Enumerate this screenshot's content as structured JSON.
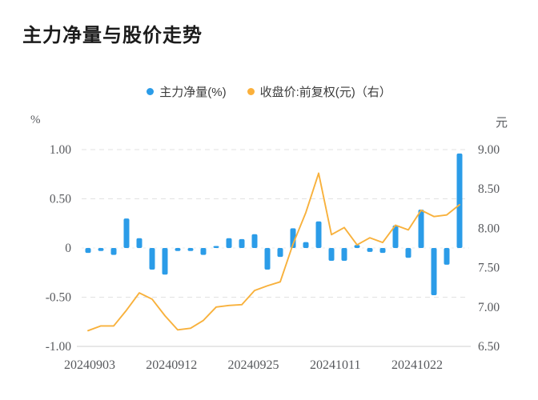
{
  "title": "主力净量与股价走势",
  "legend": {
    "items": [
      {
        "label": "主力净量(%)",
        "color": "#2b9ce8"
      },
      {
        "label": "收盘价:前复权(元)（右）",
        "color": "#fbb03b"
      }
    ]
  },
  "chart_data": {
    "type": "combo-bar-line",
    "title": "主力净量与股价走势",
    "x_tick_labels": [
      "20240903",
      "20240912",
      "20240925",
      "20241011",
      "20241022"
    ],
    "left_axis": {
      "unit": "%",
      "min": -1.0,
      "max": 1.0,
      "ticks": [
        1.0,
        0.5,
        0,
        -0.5,
        -1.0
      ],
      "tick_labels": [
        "1.00",
        "0.50",
        "0",
        "-0.50",
        "-1.00"
      ]
    },
    "right_axis": {
      "unit": "元",
      "min": 6.5,
      "max": 9.0,
      "ticks": [
        9.0,
        8.5,
        8.0,
        7.5,
        7.0,
        6.5
      ],
      "tick_labels": [
        "9.00",
        "8.50",
        "8.00",
        "7.50",
        "7.00",
        "6.50"
      ]
    },
    "grid": {
      "horizontal_dashed": true,
      "legend_position": "top-center"
    },
    "series": [
      {
        "name": "主力净量(%)",
        "type": "bar",
        "axis": "left",
        "color": "#2b9ce8",
        "values": [
          -0.05,
          -0.03,
          -0.07,
          0.3,
          0.1,
          -0.22,
          -0.27,
          -0.03,
          -0.03,
          -0.07,
          0.02,
          0.1,
          0.09,
          0.14,
          -0.22,
          -0.09,
          0.2,
          0.06,
          0.27,
          -0.13,
          -0.13,
          0.03,
          -0.04,
          -0.05,
          0.23,
          -0.1,
          0.39,
          -0.48,
          -0.17,
          0.96
        ]
      },
      {
        "name": "收盘价:前复权(元)",
        "type": "line",
        "axis": "right",
        "color": "#f8b13c",
        "values": [
          6.7,
          6.76,
          6.76,
          6.96,
          7.18,
          7.1,
          6.89,
          6.71,
          6.73,
          6.83,
          7.0,
          7.02,
          7.03,
          7.21,
          7.27,
          7.32,
          7.8,
          8.2,
          8.7,
          7.92,
          8.01,
          7.79,
          7.88,
          7.82,
          8.04,
          7.98,
          8.23,
          8.15,
          8.17,
          8.3
        ]
      }
    ]
  }
}
